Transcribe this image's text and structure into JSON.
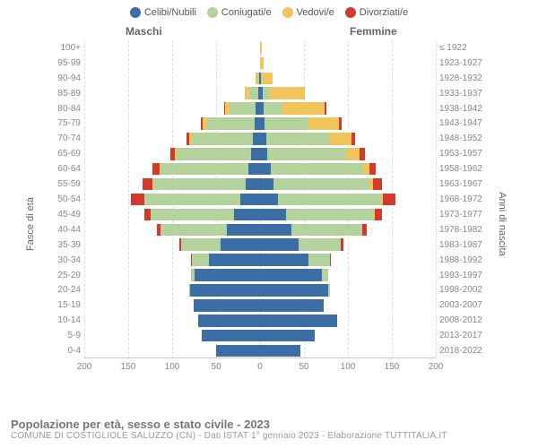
{
  "legend": [
    {
      "label": "Celibi/Nubili",
      "color": "#3a6ea5"
    },
    {
      "label": "Coniugati/e",
      "color": "#b4d29b"
    },
    {
      "label": "Vedovi/e",
      "color": "#f2c55c"
    },
    {
      "label": "Divorziati/e",
      "color": "#d23a2e"
    }
  ],
  "headers": {
    "male": "Maschi",
    "female": "Femmine"
  },
  "axes": {
    "left_label": "Fasce di età",
    "right_label": "Anni di nascita",
    "xmax": 200,
    "xticks": [
      -200,
      -150,
      -100,
      -50,
      0,
      50,
      100,
      150,
      200
    ],
    "xtick_labels": [
      "200",
      "150",
      "100",
      "50",
      "0",
      "50",
      "100",
      "150",
      "200"
    ]
  },
  "rows": [
    {
      "age": "100+",
      "birth": "≤ 1922",
      "m": [
        0,
        0,
        0,
        0
      ],
      "f": [
        0,
        0,
        2,
        0
      ]
    },
    {
      "age": "95-99",
      "birth": "1923-1927",
      "m": [
        0,
        0,
        0,
        0
      ],
      "f": [
        0,
        0,
        4,
        0
      ]
    },
    {
      "age": "90-94",
      "birth": "1928-1932",
      "m": [
        1,
        2,
        2,
        0
      ],
      "f": [
        1,
        1,
        12,
        0
      ]
    },
    {
      "age": "85-89",
      "birth": "1933-1937",
      "m": [
        2,
        10,
        5,
        0
      ],
      "f": [
        3,
        8,
        40,
        0
      ]
    },
    {
      "age": "80-84",
      "birth": "1938-1942",
      "m": [
        5,
        30,
        5,
        1
      ],
      "f": [
        4,
        22,
        48,
        2
      ]
    },
    {
      "age": "75-79",
      "birth": "1943-1947",
      "m": [
        6,
        55,
        4,
        2
      ],
      "f": [
        5,
        50,
        35,
        3
      ]
    },
    {
      "age": "70-74",
      "birth": "1948-1952",
      "m": [
        8,
        70,
        3,
        3
      ],
      "f": [
        7,
        72,
        25,
        4
      ]
    },
    {
      "age": "65-69",
      "birth": "1953-1957",
      "m": [
        10,
        85,
        2,
        5
      ],
      "f": [
        8,
        90,
        15,
        6
      ]
    },
    {
      "age": "60-64",
      "birth": "1958-1962",
      "m": [
        13,
        100,
        1,
        8
      ],
      "f": [
        12,
        105,
        8,
        7
      ]
    },
    {
      "age": "55-59",
      "birth": "1963-1967",
      "m": [
        16,
        105,
        1,
        12
      ],
      "f": [
        15,
        110,
        4,
        10
      ]
    },
    {
      "age": "50-54",
      "birth": "1968-1972",
      "m": [
        22,
        110,
        0,
        15
      ],
      "f": [
        20,
        118,
        2,
        14
      ]
    },
    {
      "age": "45-49",
      "birth": "1973-1977",
      "m": [
        30,
        95,
        0,
        7
      ],
      "f": [
        30,
        100,
        1,
        8
      ]
    },
    {
      "age": "40-44",
      "birth": "1978-1982",
      "m": [
        38,
        75,
        0,
        4
      ],
      "f": [
        36,
        80,
        0,
        5
      ]
    },
    {
      "age": "35-39",
      "birth": "1983-1987",
      "m": [
        45,
        45,
        0,
        2
      ],
      "f": [
        44,
        48,
        0,
        3
      ]
    },
    {
      "age": "30-34",
      "birth": "1988-1992",
      "m": [
        58,
        20,
        0,
        1
      ],
      "f": [
        55,
        25,
        0,
        1
      ]
    },
    {
      "age": "25-29",
      "birth": "1993-1997",
      "m": [
        74,
        5,
        0,
        0
      ],
      "f": [
        70,
        8,
        0,
        0
      ]
    },
    {
      "age": "20-24",
      "birth": "1998-2002",
      "m": [
        80,
        1,
        0,
        0
      ],
      "f": [
        78,
        2,
        0,
        0
      ]
    },
    {
      "age": "15-19",
      "birth": "2003-2007",
      "m": [
        76,
        0,
        0,
        0
      ],
      "f": [
        72,
        0,
        0,
        0
      ]
    },
    {
      "age": "10-14",
      "birth": "2008-2012",
      "m": [
        70,
        0,
        0,
        0
      ],
      "f": [
        88,
        0,
        0,
        0
      ]
    },
    {
      "age": "5-9",
      "birth": "2013-2017",
      "m": [
        66,
        0,
        0,
        0
      ],
      "f": [
        62,
        0,
        0,
        0
      ]
    },
    {
      "age": "0-4",
      "birth": "2018-2022",
      "m": [
        50,
        0,
        0,
        0
      ],
      "f": [
        46,
        0,
        0,
        0
      ]
    }
  ],
  "footer": {
    "title": "Popolazione per età, sesso e stato civile - 2023",
    "subtitle": "COMUNE DI COSTIGLIOLE SALUZZO (CN) - Dati ISTAT 1° gennaio 2023 - Elaborazione TUTTITALIA.IT"
  },
  "colors": {
    "grid": "#dddddd",
    "centerline": "#bbbbbb",
    "bg": "#ffffff"
  }
}
